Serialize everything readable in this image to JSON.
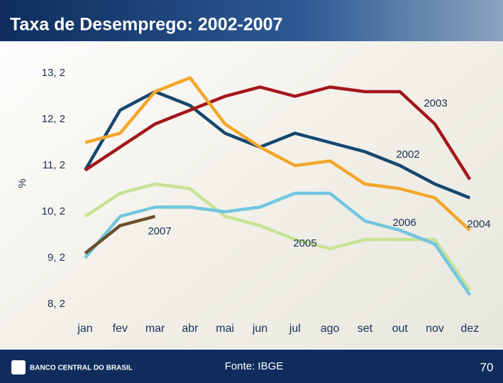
{
  "chart_data": {
    "type": "line",
    "title": "Taxa de Desemprego: 2002-2007",
    "y_label": "%",
    "source": "Fonte: IBGE",
    "page_number": "70",
    "logo_text": "BANCO CENTRAL DO BRASIL",
    "categories": [
      "jan",
      "fev",
      "mar",
      "abr",
      "mai",
      "jun",
      "jul",
      "ago",
      "set",
      "out",
      "nov",
      "dez"
    ],
    "ylim": [
      8.0,
      13.4
    ],
    "yticks": [
      {
        "value": 13.2,
        "label": "13, 2"
      },
      {
        "value": 12.2,
        "label": "12, 2"
      },
      {
        "value": 11.2,
        "label": "11, 2"
      },
      {
        "value": 10.2,
        "label": "10, 2"
      },
      {
        "value": 9.2,
        "label": "9, 2"
      },
      {
        "value": 8.2,
        "label": "8, 2"
      }
    ],
    "grid": false,
    "series": [
      {
        "name": "2002",
        "color": "#15476f",
        "values": [
          11.1,
          12.4,
          12.8,
          12.5,
          11.9,
          11.6,
          11.9,
          11.7,
          11.5,
          11.2,
          10.8,
          10.5
        ]
      },
      {
        "name": "2003",
        "color": "#a3161b",
        "values": [
          11.1,
          11.6,
          12.1,
          12.4,
          12.7,
          12.9,
          12.7,
          12.9,
          12.8,
          12.8,
          12.1,
          10.9
        ]
      },
      {
        "name": "2004",
        "color": "#f4a62a",
        "values": [
          11.7,
          11.9,
          12.8,
          13.1,
          12.1,
          11.6,
          11.2,
          11.3,
          10.8,
          10.7,
          10.5,
          9.8
        ]
      },
      {
        "name": "2005",
        "color": "#c8e295",
        "values": [
          10.1,
          10.6,
          10.8,
          10.7,
          10.1,
          9.9,
          9.6,
          9.4,
          9.6,
          9.6,
          9.6,
          8.5
        ]
      },
      {
        "name": "2006",
        "color": "#72c6df",
        "values": [
          9.2,
          10.1,
          10.3,
          10.3,
          10.2,
          10.3,
          10.6,
          10.6,
          10.0,
          9.8,
          9.5,
          8.4
        ]
      },
      {
        "name": "2007",
        "color": "#6b4f2b",
        "values": [
          9.3,
          9.9,
          10.1,
          null,
          null,
          null,
          null,
          null,
          null,
          null,
          null,
          null
        ]
      }
    ]
  }
}
